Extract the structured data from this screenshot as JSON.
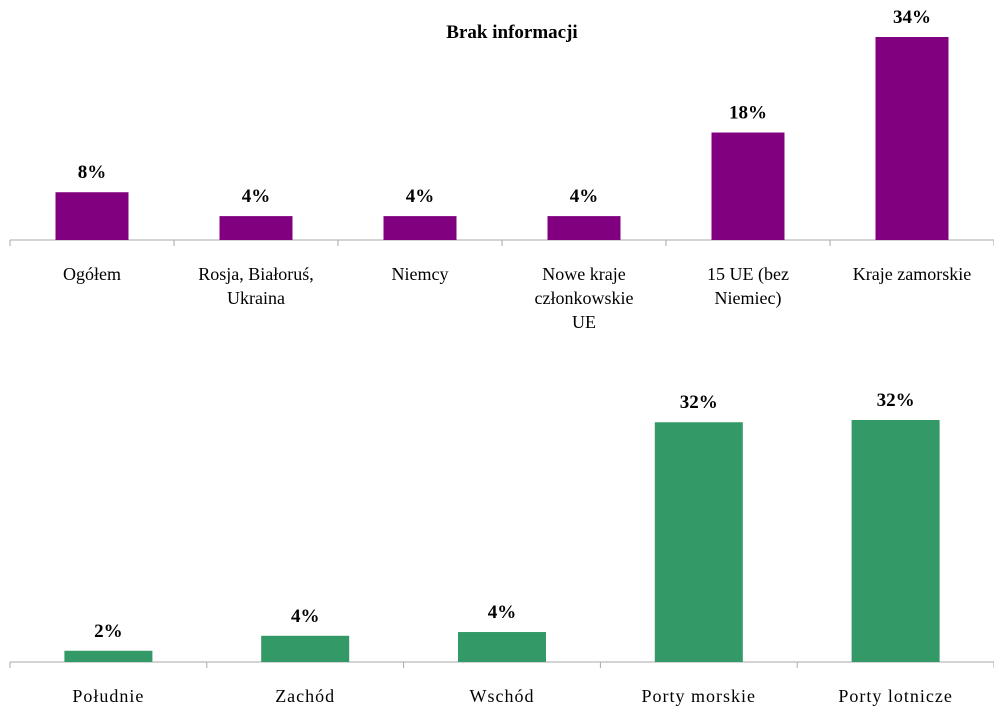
{
  "chart_data": [
    {
      "type": "bar",
      "title": "Brak informacji",
      "categories": [
        "Ogółem",
        "Rosja, Białoruś, Ukraina",
        "Niemcy",
        "Nowe kraje członkowskie UE",
        "15 UE (bez Niemiec)",
        "Kraje zamorskie"
      ],
      "values": [
        8,
        4,
        4,
        4,
        18,
        34
      ],
      "value_labels": [
        "8%",
        "4%",
        "4%",
        "4%",
        "18%",
        "34%"
      ],
      "color": "#800080",
      "ylim": [
        0,
        34
      ]
    },
    {
      "type": "bar",
      "categories": [
        "Południe",
        "Zachód",
        "Wschód",
        "Porty morskie",
        "Porty lotnicze"
      ],
      "values": [
        1.5,
        3.5,
        4,
        32,
        32.3
      ],
      "value_labels": [
        "2%",
        "4%",
        "4%",
        "32%",
        "32%"
      ],
      "color": "#339966",
      "ylim": [
        0,
        32.3
      ]
    }
  ]
}
